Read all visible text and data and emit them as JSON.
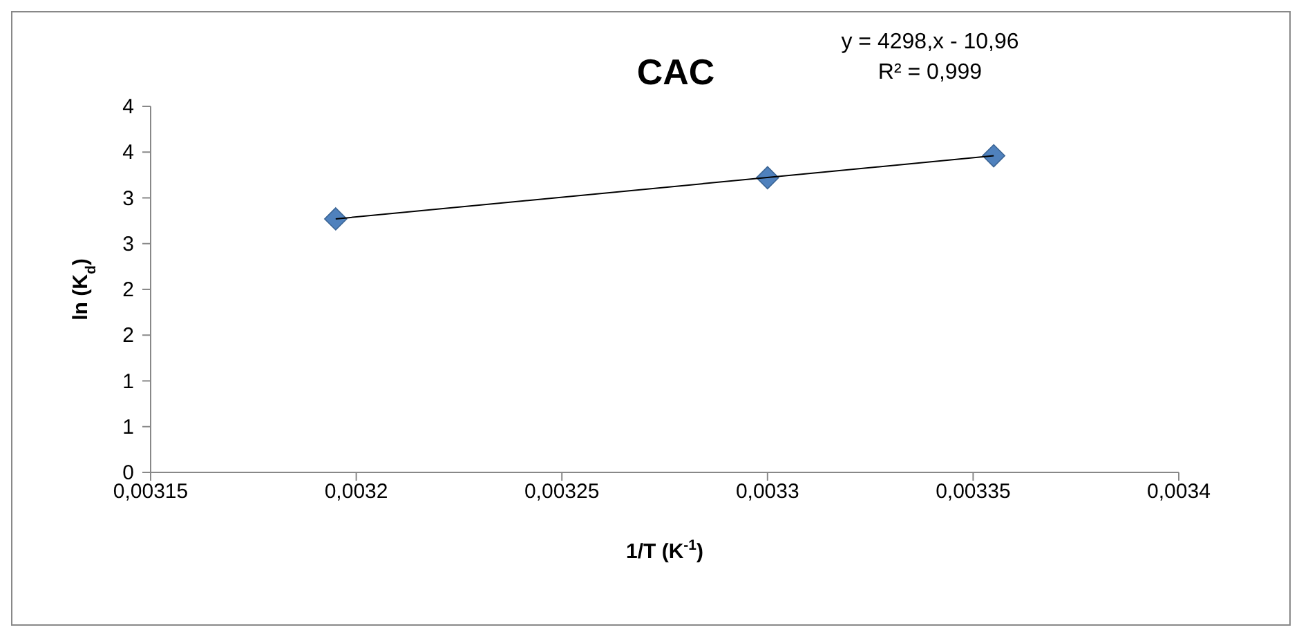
{
  "chart_data": {
    "type": "scatter",
    "title": "CAC",
    "xlabel": "1/T (K$^{-1}$)",
    "ylabel": "ln (K$_{d}$)",
    "series": [
      {
        "type": "scatter",
        "color": "#4f81bd",
        "x": [
          0.003195,
          0.0033,
          0.003355
        ],
        "values": [
          2.77,
          3.22,
          3.46
        ],
        "marker": "diamond"
      },
      {
        "type": "line",
        "color": "#000000",
        "x": [
          0.003195,
          0.003355
        ],
        "values": [
          2.77,
          3.46
        ],
        "marker": "none"
      }
    ],
    "xlim": [
      0.00315,
      0.0034
    ],
    "xticks": [
      {
        "value": 0.00315,
        "label": "0,00315"
      },
      {
        "value": 0.0032,
        "label": "0,0032"
      },
      {
        "value": 0.00325,
        "label": "0,00325"
      },
      {
        "value": 0.0033,
        "label": "0,0033"
      },
      {
        "value": 0.00335,
        "label": "0,00335"
      },
      {
        "value": 0.0034,
        "label": "0,0034"
      }
    ],
    "ylim": [
      0,
      4
    ],
    "yticks": [
      0,
      {
        "value": 0.5,
        "label": "1"
      },
      1,
      {
        "value": 1.5,
        "label": "2"
      },
      2,
      {
        "value": 2.5,
        "label": "3"
      },
      3,
      {
        "value": 3.5,
        "label": "4"
      },
      4
    ],
    "annotations": [
      "y = 4298,x - 10,96",
      "R² = 0,999"
    ],
    "grid": false,
    "legend": false
  }
}
